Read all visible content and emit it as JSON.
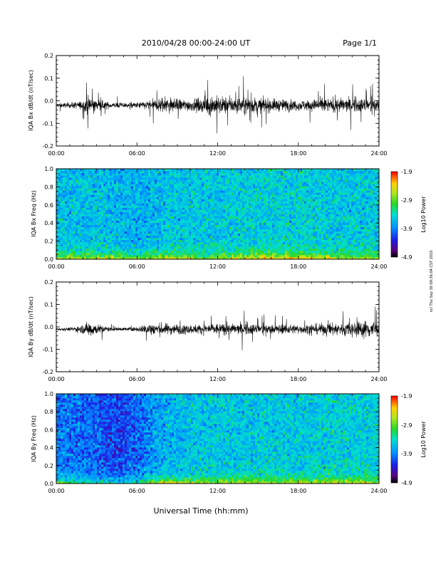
{
  "header": {
    "title": "2010/04/28  00:00-24:00 UT",
    "page": "Page 1/1"
  },
  "xaxis": {
    "label": "Universal Time (hh:mm)",
    "ticks": [
      "00:00",
      "06:00",
      "12:00",
      "18:00",
      "24:00"
    ],
    "range_hours": [
      0,
      24
    ]
  },
  "side_stamp": "ncl Thu Sep 30 09:36:04 CST 2010",
  "chart_data": [
    {
      "type": "line",
      "name": "bx-timeseries",
      "ylabel": "IQA Bx dB/dt (nT/sec)",
      "ylim": [
        -0.2,
        0.2
      ],
      "yticks": [
        "0.2",
        "0.1",
        "0.0",
        "-0.1",
        "-0.2"
      ],
      "baseline": -0.02,
      "envelope_hours": [
        0,
        1,
        2,
        2.5,
        3,
        4,
        5,
        6,
        7,
        7.5,
        8,
        9,
        10,
        11,
        11.5,
        12,
        13,
        14,
        15,
        16,
        17,
        18,
        19,
        20,
        21,
        22,
        23,
        24
      ],
      "envelope_amp": [
        0.015,
        0.018,
        0.03,
        0.07,
        0.04,
        0.02,
        0.018,
        0.02,
        0.035,
        0.05,
        0.06,
        0.045,
        0.04,
        0.05,
        0.075,
        0.06,
        0.055,
        0.06,
        0.05,
        0.045,
        0.04,
        0.035,
        0.04,
        0.045,
        0.05,
        0.045,
        0.05,
        0.045
      ]
    },
    {
      "type": "heatmap",
      "name": "bx-spectrogram",
      "ylabel": "IQA Bx Freq (Hz)",
      "ylim": [
        0.0,
        1.0
      ],
      "yticks": [
        "1.0",
        "0.8",
        "0.6",
        "0.4",
        "0.2",
        "0.0"
      ],
      "colorbar": {
        "label": "Log10 Power",
        "range": [
          -4.9,
          -1.9
        ],
        "ticks": [
          "-1.9",
          "-2.9",
          "-3.9",
          "-4.9"
        ]
      },
      "hf_level_hours": [
        0,
        3,
        6,
        9,
        12,
        15,
        18,
        21,
        24
      ],
      "hf_level_log": [
        -3.6,
        -3.6,
        -3.7,
        -3.55,
        -3.55,
        -3.5,
        -3.5,
        -3.55,
        -3.55
      ],
      "lf_boost_hours": [
        0,
        3,
        6,
        8,
        9,
        12,
        15,
        18,
        21,
        24
      ],
      "lf_boost_log": [
        1.1,
        1.2,
        1.1,
        1.3,
        1.0,
        0.9,
        1.3,
        1.4,
        1.1,
        1.0
      ]
    },
    {
      "type": "line",
      "name": "by-timeseries",
      "ylabel": "IQA By dB/dt (nT/sec)",
      "ylim": [
        -0.2,
        0.2
      ],
      "yticks": [
        "0.2",
        "0.1",
        "0.0",
        "-0.1",
        "-0.2"
      ],
      "baseline": -0.01,
      "envelope_hours": [
        0,
        1,
        2,
        2.5,
        3,
        4,
        5,
        6,
        6.5,
        7,
        8,
        9,
        10,
        11,
        12,
        13,
        14,
        15,
        16,
        17,
        18,
        19,
        20,
        21,
        22,
        23,
        23.5,
        24
      ],
      "envelope_amp": [
        0.01,
        0.012,
        0.03,
        0.06,
        0.035,
        0.015,
        0.012,
        0.015,
        0.03,
        0.045,
        0.04,
        0.035,
        0.03,
        0.035,
        0.04,
        0.035,
        0.04,
        0.035,
        0.03,
        0.035,
        0.03,
        0.035,
        0.04,
        0.045,
        0.05,
        0.06,
        0.07,
        0.05
      ]
    },
    {
      "type": "heatmap",
      "name": "by-spectrogram",
      "ylabel": "IQA By Freq (Hz)",
      "ylim": [
        0.0,
        1.0
      ],
      "yticks": [
        "1.0",
        "0.8",
        "0.6",
        "0.4",
        "0.2",
        "0.0"
      ],
      "colorbar": {
        "label": "Log10 Power",
        "range": [
          -4.9,
          -1.9
        ],
        "ticks": [
          "-1.9",
          "-2.9",
          "-3.9",
          "-4.9"
        ]
      },
      "hf_level_hours": [
        0,
        2,
        3,
        4,
        5,
        6,
        7,
        8,
        10,
        12,
        15,
        18,
        21,
        24
      ],
      "hf_level_log": [
        -3.95,
        -4.0,
        -4.05,
        -4.15,
        -4.15,
        -4.05,
        -3.85,
        -3.7,
        -3.6,
        -3.55,
        -3.55,
        -3.55,
        -3.5,
        -3.5
      ],
      "lf_boost_hours": [
        0,
        3,
        6,
        7,
        8,
        9,
        12,
        15,
        18,
        21,
        24
      ],
      "lf_boost_log": [
        1.0,
        1.0,
        0.9,
        1.2,
        1.5,
        1.1,
        1.0,
        1.1,
        1.0,
        1.0,
        0.9
      ]
    }
  ]
}
